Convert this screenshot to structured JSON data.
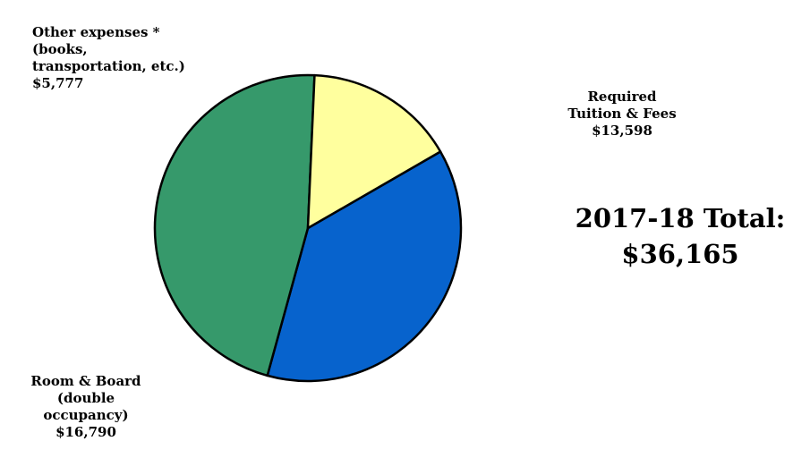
{
  "chart_data": {
    "type": "pie",
    "title": "",
    "slices": [
      {
        "label": "Required\nTuition & Fees",
        "value_label": "$13,598",
        "value": 13598,
        "color": "#0763CD"
      },
      {
        "label": "Room & Board\n(double\noccupancy)",
        "value_label": "$16,790",
        "value": 16790,
        "color": "#36996B"
      },
      {
        "label": "Other expenses *\n(books,\ntransportation, etc.)",
        "value_label": "$5,777",
        "value": 5777,
        "color": "#FFFF9E"
      }
    ],
    "start_angle_deg": -30,
    "direction": "clockwise",
    "outline_color": "#000000"
  },
  "total": {
    "line1": "2017-18 Total:",
    "line2": "$36,165"
  }
}
